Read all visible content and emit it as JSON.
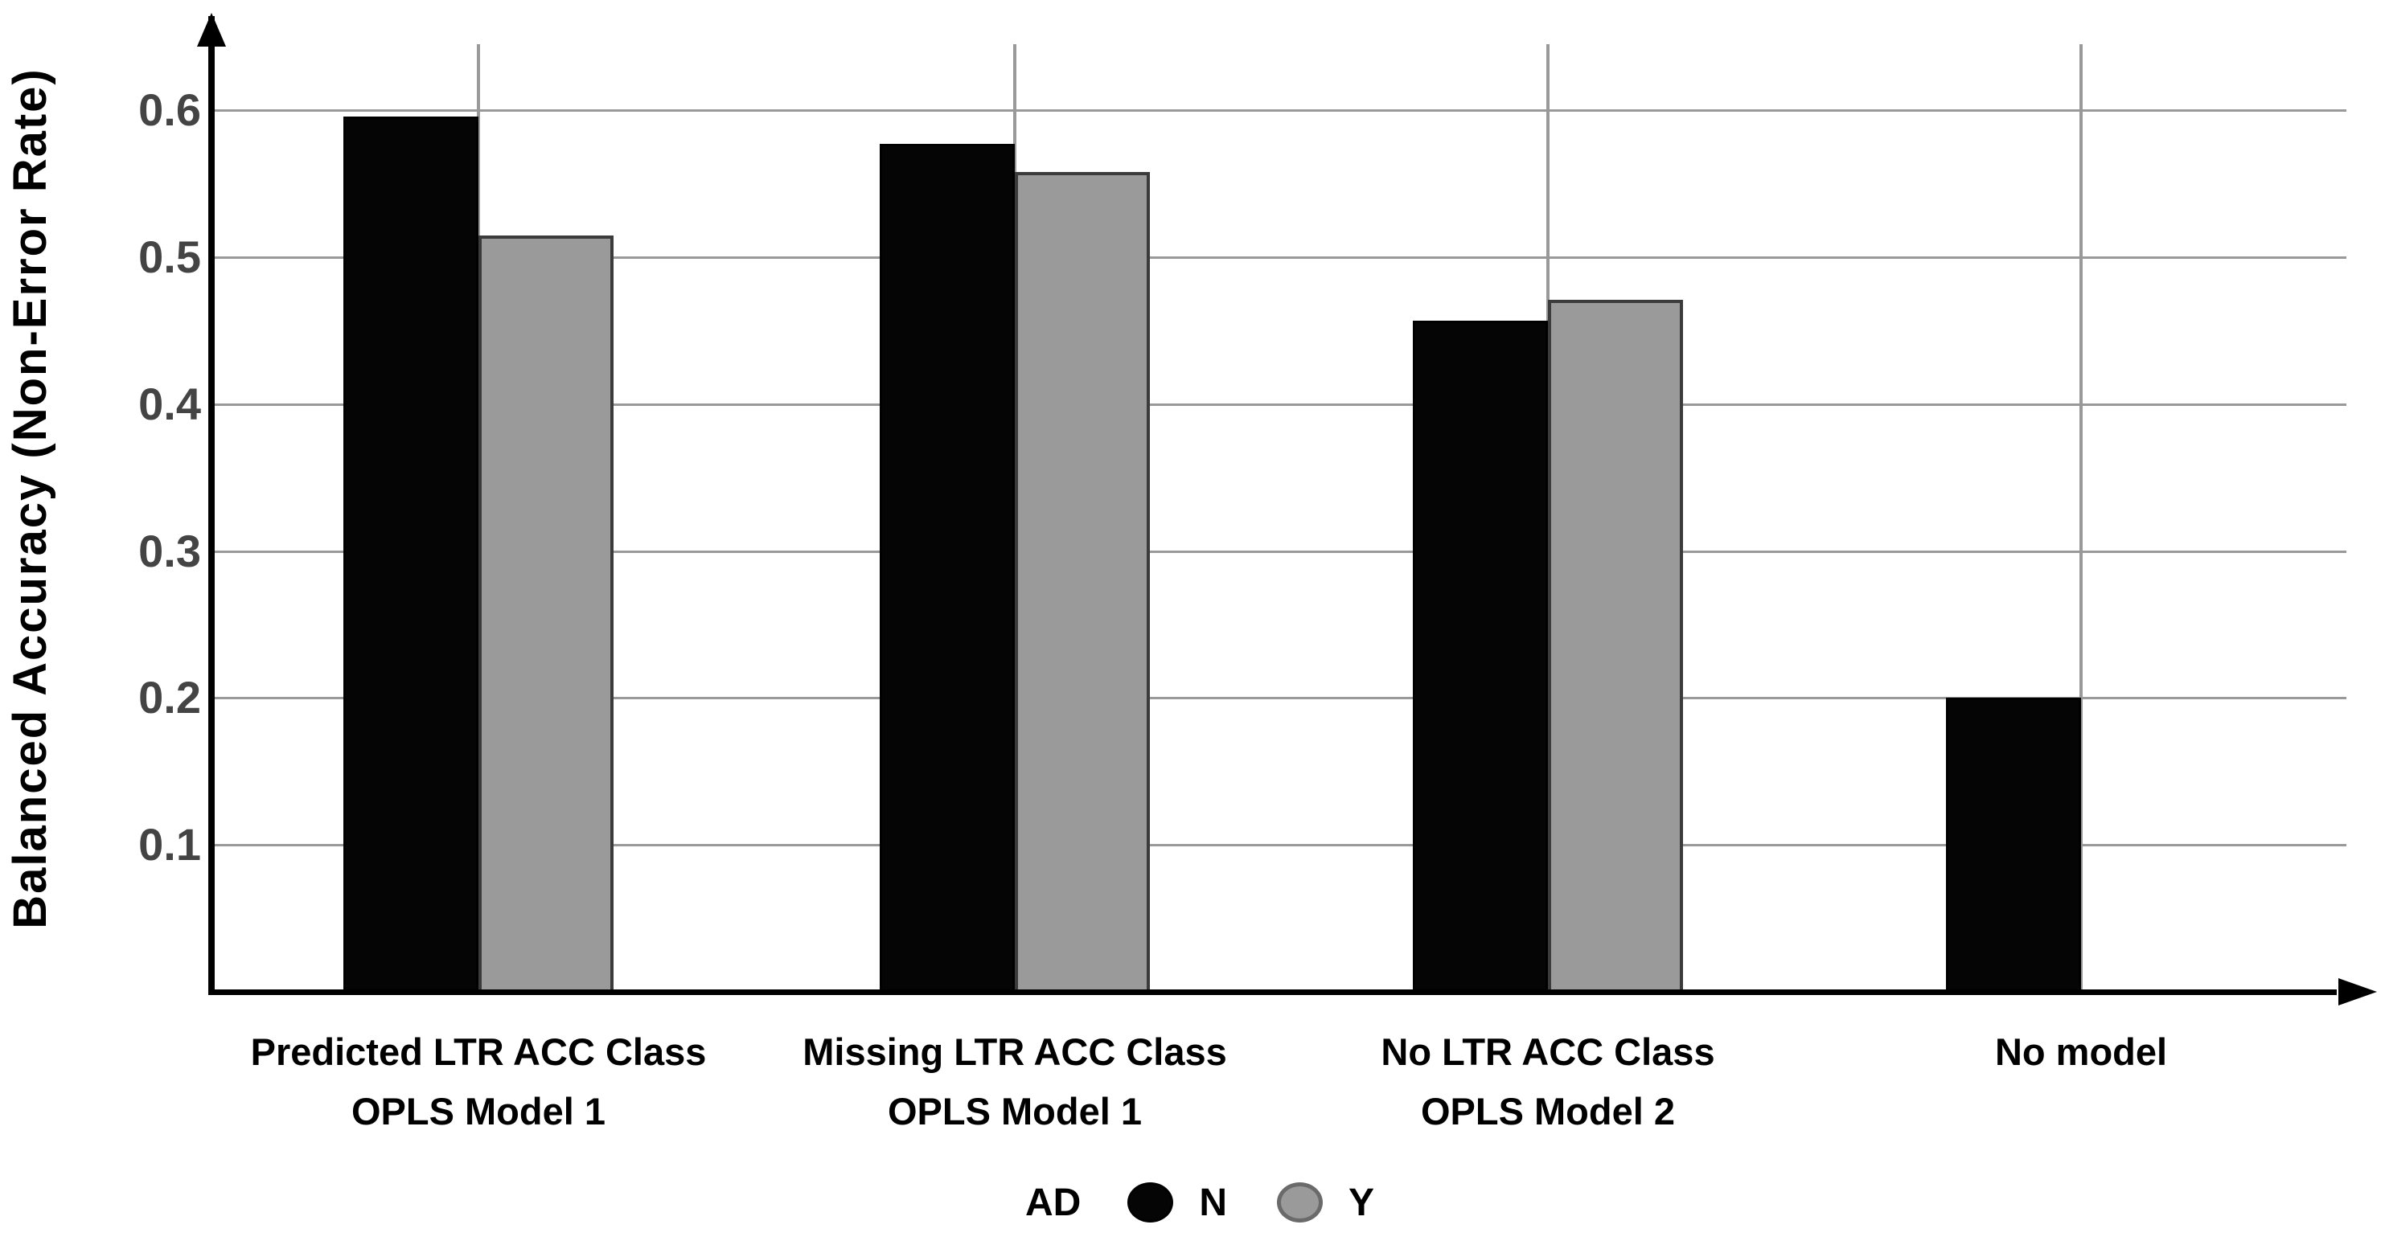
{
  "chart_data": {
    "type": "bar",
    "title": "",
    "ylabel": "Balanced Accuracy (Non-Error Rate)",
    "xlabel": "",
    "ylim": [
      0,
      0.66
    ],
    "yticks": [
      0.6,
      0.5,
      0.4,
      0.3,
      0.2,
      0.1
    ],
    "grid": true,
    "legend": {
      "title": "AD",
      "position": "bottom"
    },
    "categories": [
      {
        "lines": [
          "Predicted LTR ACC Class",
          "OPLS Model 1"
        ]
      },
      {
        "lines": [
          "Missing LTR ACC Class",
          "OPLS Model 1"
        ]
      },
      {
        "lines": [
          "No LTR ACC Class",
          "OPLS Model 2"
        ]
      },
      {
        "lines": [
          "No model"
        ]
      }
    ],
    "series": [
      {
        "name": "N",
        "color": "#050505",
        "border": "#000000",
        "values": [
          0.596,
          0.577,
          0.457,
          0.2
        ]
      },
      {
        "name": "Y",
        "color": "#9a9a9a",
        "border": "#3b3b3b",
        "values": [
          0.515,
          0.558,
          0.471,
          null
        ]
      }
    ]
  },
  "colors": {
    "background": "#ffffff",
    "axis": "#000000",
    "gridline": "#999999",
    "tick_label": "#444444",
    "category_label": "#000000",
    "legend_gray_ring": "#6a6a6a"
  }
}
